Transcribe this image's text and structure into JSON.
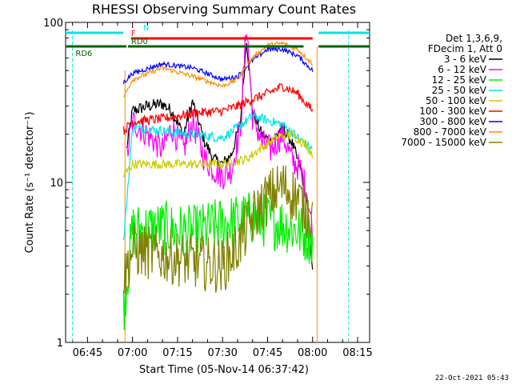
{
  "chart_data": {
    "type": "line",
    "title": "RHESSI Observing Summary Count Rates",
    "xlabel": "Start Time (05-Nov-14 06:37:42)",
    "ylabel": "Count Rate (s⁻¹ detector⁻¹)",
    "yscale": "log",
    "ylim": [
      1,
      100
    ],
    "xlim": [
      "06:37:42",
      "08:19:00"
    ],
    "x_ticks": [
      "06:45",
      "07:00",
      "07:15",
      "07:30",
      "07:45",
      "08:00",
      "08:15"
    ],
    "y_ticks": [
      "1",
      "10",
      "100"
    ],
    "legend_header": [
      "Det 1,3,6,9,",
      "FDecim 1, Att 0"
    ],
    "legend_position": "right",
    "timestamp": "22-Oct-2021 05:43",
    "flags": [
      {
        "label": "N",
        "color": "#00e5e5"
      },
      {
        "label": "F",
        "color": "#ff0000"
      },
      {
        "label": "RD0",
        "color": "#006400"
      },
      {
        "label": "RD6",
        "color": "#006400"
      }
    ],
    "data_window": [
      "06:57:30",
      "08:01:30"
    ],
    "series": [
      {
        "name": "3 - 6 keV",
        "color": "#000000",
        "x": [
          "06:58",
          "07:00",
          "07:05",
          "07:10",
          "07:13",
          "07:17",
          "07:20",
          "07:24",
          "07:27",
          "07:30",
          "07:33",
          "07:36",
          "07:38",
          "07:40",
          "07:43",
          "07:46",
          "07:50",
          "07:53",
          "07:56",
          "07:58",
          "08:00"
        ],
        "values": [
          16,
          28,
          30,
          31,
          28,
          20,
          32,
          18,
          14,
          13,
          15,
          24,
          80,
          28,
          20,
          18,
          22,
          18,
          12,
          8,
          3
        ]
      },
      {
        "name": "6 - 12 keV",
        "color": "#ff00ff",
        "x": [
          "06:58",
          "07:00",
          "07:05",
          "07:10",
          "07:13",
          "07:17",
          "07:20",
          "07:24",
          "07:27",
          "07:30",
          "07:33",
          "07:36",
          "07:38",
          "07:40",
          "07:43",
          "07:46",
          "07:50",
          "07:53",
          "07:56",
          "07:58",
          "08:00"
        ],
        "values": [
          14,
          24,
          20,
          16,
          22,
          16,
          24,
          14,
          12,
          11,
          12,
          22,
          100,
          26,
          18,
          16,
          20,
          14,
          12,
          9,
          5
        ]
      },
      {
        "name": "12 - 25 keV",
        "color": "#00ee00",
        "x": [
          "06:57",
          "07:00",
          "07:10",
          "07:20",
          "07:30",
          "07:40",
          "07:50",
          "08:00"
        ],
        "values": [
          1.6,
          5,
          5.2,
          4.8,
          5.5,
          6,
          5.5,
          4.5
        ]
      },
      {
        "name": "25 - 50 keV",
        "color": "#00e5e5",
        "x": [
          "06:57",
          "07:00",
          "07:10",
          "07:20",
          "07:30",
          "07:35",
          "07:40",
          "07:50",
          "08:00"
        ],
        "values": [
          4.2,
          22,
          21,
          20,
          19,
          22,
          26,
          23,
          16
        ]
      },
      {
        "name": "50 - 100 keV",
        "color": "#cccc00",
        "x": [
          "06:57",
          "07:00",
          "07:30",
          "07:38",
          "07:42",
          "07:48",
          "07:53",
          "07:58",
          "08:00"
        ],
        "values": [
          11,
          13,
          13,
          14,
          16,
          19,
          20,
          17,
          15
        ]
      },
      {
        "name": "100 - 300 keV",
        "color": "#ff0000",
        "x": [
          "06:57",
          "07:00",
          "07:10",
          "07:20",
          "07:30",
          "07:35",
          "07:40",
          "07:45",
          "07:50",
          "07:55",
          "08:00"
        ],
        "values": [
          21,
          24,
          25,
          27,
          28,
          30,
          33,
          36,
          40,
          36,
          28
        ]
      },
      {
        "name": "300 - 800 keV",
        "color": "#0000ff",
        "x": [
          "06:57",
          "07:00",
          "07:10",
          "07:20",
          "07:30",
          "07:35",
          "07:40",
          "07:45",
          "07:50",
          "07:55",
          "08:00"
        ],
        "values": [
          42,
          48,
          55,
          52,
          44,
          46,
          58,
          68,
          68,
          62,
          50
        ]
      },
      {
        "name": "800 - 7000 keV",
        "color": "#ff8c00",
        "x": [
          "06:57",
          "07:00",
          "07:10",
          "07:20",
          "07:30",
          "07:35",
          "07:40",
          "07:45",
          "07:50",
          "07:55",
          "08:00"
        ],
        "values": [
          34,
          44,
          52,
          46,
          40,
          44,
          60,
          72,
          74,
          68,
          55
        ]
      },
      {
        "name": "7000 - 15000 keV",
        "color": "#808000",
        "x": [
          "06:57",
          "07:00",
          "07:10",
          "07:20",
          "07:30",
          "07:35",
          "07:40",
          "07:45",
          "07:50",
          "07:55",
          "08:00"
        ],
        "values": [
          2.5,
          3.8,
          3.5,
          3.2,
          3,
          4,
          6,
          8,
          9.5,
          8,
          6
        ]
      }
    ]
  }
}
